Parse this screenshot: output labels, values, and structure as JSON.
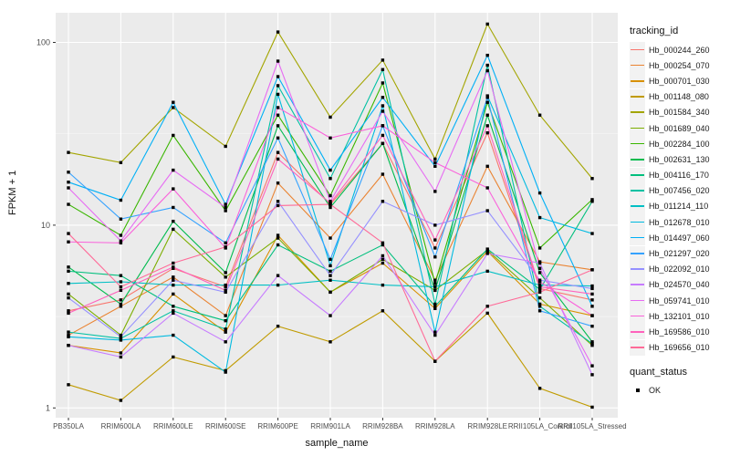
{
  "figure": {
    "x_axis_title": "sample_name",
    "y_axis_title": "FPKM + 1"
  },
  "legend": {
    "tracking_title": "tracking_id",
    "quant_title": "quant_status",
    "quant_items": [
      {
        "label": "OK",
        "color": "#000000"
      }
    ]
  },
  "chart_data": {
    "type": "line",
    "title": "",
    "xlabel": "sample_name",
    "ylabel": "FPKM + 1",
    "y_scale": "log10",
    "y_ticks": [
      1,
      10,
      100
    ],
    "y_tick_labels": [
      "1",
      "10",
      "100"
    ],
    "ylim": [
      0.9,
      150
    ],
    "grid": true,
    "legend_position": "right",
    "legend_title": "tracking_id",
    "point_marker_color": "#000000",
    "quant_status": {
      "title": "quant_status",
      "items": [
        "OK"
      ]
    },
    "categories": [
      "PB350LA",
      "RRIM600LA",
      "RRIM600LE",
      "RRIM600SE",
      "RRIM600PE",
      "RRIM901LA",
      "RRIM928BA",
      "RRIM928LA",
      "RRIM928LE",
      "RRII105LA_Control",
      "RRII105LA_Stressed"
    ],
    "series": [
      {
        "name": "Hb_000244_260",
        "color": "#F8766D",
        "values": [
          3.4,
          3.9,
          5.8,
          4.6,
          25,
          13,
          28,
          7.5,
          32,
          4.5,
          3.9
        ]
      },
      {
        "name": "Hb_000254_070",
        "color": "#EA8331",
        "values": [
          2.5,
          3.6,
          5.2,
          3.2,
          17,
          8.5,
          19,
          5.0,
          21,
          6.3,
          5.7
        ]
      },
      {
        "name": "Hb_000701_030",
        "color": "#D89000",
        "values": [
          2.2,
          2.0,
          4.2,
          2.6,
          8.8,
          4.3,
          6.2,
          3.5,
          7.2,
          3.7,
          3.2
        ]
      },
      {
        "name": "Hb_001148_080",
        "color": "#C09B00",
        "values": [
          1.34,
          1.1,
          1.9,
          1.6,
          2.8,
          2.3,
          3.4,
          1.8,
          3.3,
          1.28,
          1.01
        ]
      },
      {
        "name": "Hb_001584_340",
        "color": "#A3A500",
        "values": [
          25,
          22,
          44,
          27,
          114,
          39,
          80,
          23,
          126,
          40,
          18
        ]
      },
      {
        "name": "Hb_001689_040",
        "color": "#7CAE00",
        "values": [
          4.2,
          2.5,
          9.5,
          5.2,
          8.5,
          4.3,
          6.5,
          4.4,
          7.3,
          4.0,
          2.2
        ]
      },
      {
        "name": "Hb_002284_100",
        "color": "#39B600",
        "values": [
          13,
          8.8,
          31,
          12,
          40,
          14.5,
          60,
          4.8,
          47,
          7.5,
          13.8
        ]
      },
      {
        "name": "Hb_002631_130",
        "color": "#00BB4E",
        "values": [
          5.9,
          3.7,
          10.5,
          5.5,
          35,
          12.5,
          28,
          4.4,
          40,
          5.5,
          2.3
        ]
      },
      {
        "name": "Hb_004116_170",
        "color": "#00BF7D",
        "values": [
          5.6,
          5.3,
          3.6,
          3.0,
          7.8,
          5.6,
          7.8,
          3.6,
          7.4,
          4.45,
          13.5
        ]
      },
      {
        "name": "Hb_007456_020",
        "color": "#00C1A3",
        "values": [
          2.6,
          2.4,
          3.4,
          2.7,
          58,
          18,
          71,
          3.7,
          75,
          3.6,
          2.25
        ]
      },
      {
        "name": "Hb_011214_110",
        "color": "#00BFC4",
        "values": [
          4.8,
          4.9,
          4.7,
          4.7,
          4.7,
          5.0,
          4.7,
          4.6,
          5.6,
          4.7,
          4.65
        ]
      },
      {
        "name": "Hb_012678_010",
        "color": "#00BAE0",
        "values": [
          2.45,
          2.35,
          2.5,
          1.57,
          52,
          6.0,
          45,
          2.6,
          51,
          11,
          9.0
        ]
      },
      {
        "name": "Hb_014497_060",
        "color": "#00B0F6",
        "values": [
          17.2,
          13.7,
          47,
          13,
          65,
          20,
          50,
          21,
          85,
          15,
          3.6
        ]
      },
      {
        "name": "Hb_021297_020",
        "color": "#35A2FF",
        "values": [
          19.5,
          10.8,
          12.5,
          8.0,
          30,
          6.5,
          35,
          6.7,
          50,
          3.4,
          2.8
        ]
      },
      {
        "name": "Hb_022092_010",
        "color": "#9590FF",
        "values": [
          4.0,
          2.45,
          5.0,
          4.3,
          13.5,
          5.3,
          13.5,
          10,
          12,
          5.0,
          4.5
        ]
      },
      {
        "name": "Hb_024570_040",
        "color": "#C77CFF",
        "values": [
          2.2,
          1.9,
          3.3,
          2.3,
          5.3,
          3.2,
          6.8,
          2.5,
          7.0,
          6.2,
          1.52
        ]
      },
      {
        "name": "Hb_059741_010",
        "color": "#E76BF3",
        "values": [
          16,
          8.2,
          20,
          12.5,
          79,
          13.5,
          42,
          15.3,
          70,
          5.8,
          1.7
        ]
      },
      {
        "name": "Hb_132101_010",
        "color": "#FA62DB",
        "values": [
          8.1,
          8.0,
          15.8,
          7.5,
          44,
          30,
          35,
          22,
          16,
          4.9,
          3.2
        ]
      },
      {
        "name": "Hb_169586_010",
        "color": "#FF62BC",
        "values": [
          3.3,
          4.4,
          5.9,
          4.4,
          23,
          13.2,
          31,
          8.3,
          35,
          4.6,
          4.2
        ]
      },
      {
        "name": "Hb_169656_010",
        "color": "#FF6A98",
        "values": [
          9.0,
          4.6,
          6.2,
          7.6,
          12.8,
          13.0,
          8.0,
          1.8,
          3.6,
          4.3,
          5.7
        ]
      }
    ]
  }
}
